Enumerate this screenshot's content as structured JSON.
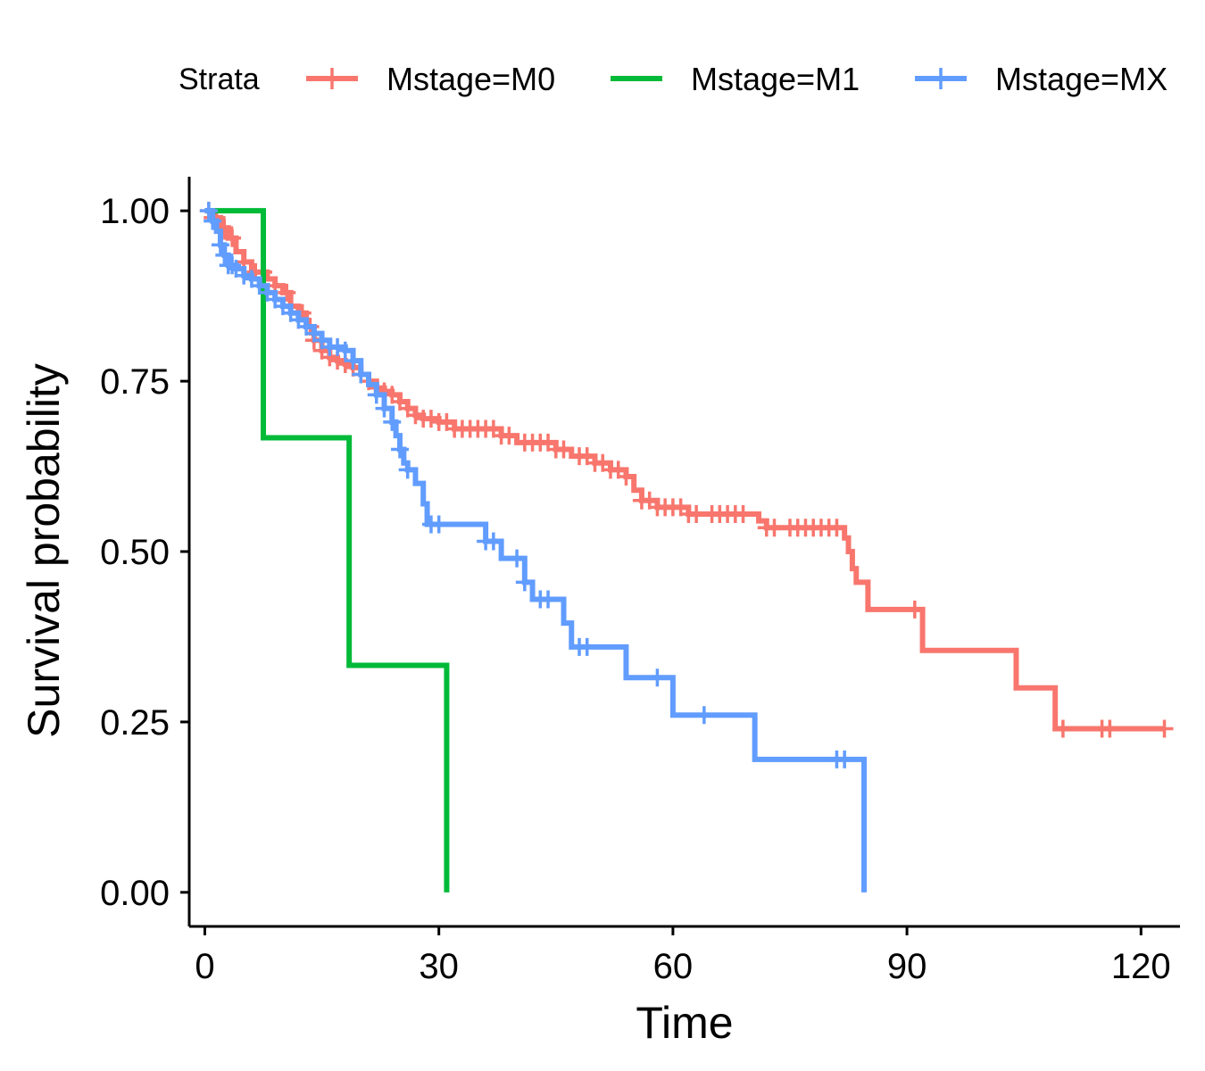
{
  "chart_data": {
    "type": "line",
    "step": true,
    "xlabel": "Time",
    "ylabel": "Survival probability",
    "xlim": [
      -2,
      125
    ],
    "ylim": [
      -0.05,
      1.05
    ],
    "x_ticks": [
      0,
      30,
      60,
      90,
      120
    ],
    "x_tick_labels": [
      "0",
      "30",
      "60",
      "90",
      "120"
    ],
    "y_ticks": [
      0,
      0.25,
      0.5,
      0.75,
      1.0
    ],
    "y_tick_labels": [
      "0.00",
      "0.25",
      "0.50",
      "0.75",
      "1.00"
    ],
    "grid": false,
    "legend": {
      "title": "Strata",
      "position": "top",
      "entries": [
        "Mstage=M0",
        "Mstage=M1",
        "Mstage=MX"
      ]
    },
    "series": [
      {
        "name": "Mstage=M0",
        "color": "#F8766D",
        "points": [
          [
            0,
            1.0
          ],
          [
            1,
            0.99
          ],
          [
            2,
            0.975
          ],
          [
            3,
            0.96
          ],
          [
            4,
            0.94
          ],
          [
            5,
            0.925
          ],
          [
            6,
            0.91
          ],
          [
            8,
            0.9
          ],
          [
            9,
            0.89
          ],
          [
            10,
            0.88
          ],
          [
            11,
            0.86
          ],
          [
            12,
            0.85
          ],
          [
            13,
            0.83
          ],
          [
            14,
            0.81
          ],
          [
            15,
            0.795
          ],
          [
            16,
            0.785
          ],
          [
            17,
            0.78
          ],
          [
            18,
            0.775
          ],
          [
            19,
            0.77
          ],
          [
            20,
            0.76
          ],
          [
            21,
            0.75
          ],
          [
            22,
            0.74
          ],
          [
            23,
            0.735
          ],
          [
            24,
            0.73
          ],
          [
            25,
            0.72
          ],
          [
            26,
            0.71
          ],
          [
            27,
            0.7
          ],
          [
            28,
            0.695
          ],
          [
            30,
            0.69
          ],
          [
            32,
            0.68
          ],
          [
            38,
            0.67
          ],
          [
            40,
            0.66
          ],
          [
            45,
            0.65
          ],
          [
            47,
            0.64
          ],
          [
            50,
            0.63
          ],
          [
            52,
            0.62
          ],
          [
            54,
            0.61
          ],
          [
            55,
            0.59
          ],
          [
            56,
            0.575
          ],
          [
            58,
            0.565
          ],
          [
            62,
            0.555
          ],
          [
            71,
            0.545
          ],
          [
            72,
            0.535
          ],
          [
            82,
            0.52
          ],
          [
            82.5,
            0.5
          ],
          [
            83,
            0.475
          ],
          [
            83.5,
            0.455
          ],
          [
            85,
            0.415
          ],
          [
            92,
            0.355
          ],
          [
            104,
            0.3
          ],
          [
            109,
            0.24
          ],
          [
            123,
            0.24
          ]
        ],
        "censor_x": [
          0.5,
          1,
          1.5,
          2.5,
          3.5,
          5,
          6.5,
          7.5,
          9,
          10.5,
          11,
          12.5,
          13.5,
          14,
          15,
          16,
          17,
          18,
          19,
          20,
          21,
          22,
          23,
          24,
          25,
          26,
          27,
          28,
          29,
          30,
          31,
          32,
          33,
          34,
          35,
          36,
          37,
          38,
          39,
          41,
          42,
          43,
          44,
          45,
          46,
          48,
          49,
          50,
          51,
          52,
          53,
          54,
          56,
          57,
          58,
          59,
          60,
          61,
          62,
          63,
          65,
          66,
          67,
          68,
          69,
          72,
          73,
          75,
          76,
          77,
          78,
          79,
          80,
          81,
          91,
          110,
          115,
          116,
          123
        ]
      },
      {
        "name": "Mstage=M1",
        "color": "#00BA38",
        "points": [
          [
            0,
            1.0
          ],
          [
            7.5,
            1.0
          ],
          [
            7.5,
            0.667
          ],
          [
            18.5,
            0.667
          ],
          [
            18.5,
            0.333
          ],
          [
            31,
            0.333
          ],
          [
            31,
            0.0
          ]
        ],
        "censor_x": []
      },
      {
        "name": "Mstage=MX",
        "color": "#619CFF",
        "points": [
          [
            0,
            1.0
          ],
          [
            1,
            0.985
          ],
          [
            1.5,
            0.97
          ],
          [
            2,
            0.95
          ],
          [
            2.5,
            0.935
          ],
          [
            3,
            0.92
          ],
          [
            4,
            0.915
          ],
          [
            5,
            0.905
          ],
          [
            6,
            0.9
          ],
          [
            7,
            0.89
          ],
          [
            8,
            0.88
          ],
          [
            9,
            0.87
          ],
          [
            10,
            0.86
          ],
          [
            11,
            0.85
          ],
          [
            12,
            0.84
          ],
          [
            13,
            0.83
          ],
          [
            14,
            0.82
          ],
          [
            15,
            0.81
          ],
          [
            16,
            0.8
          ],
          [
            18,
            0.795
          ],
          [
            19,
            0.78
          ],
          [
            20,
            0.76
          ],
          [
            21,
            0.745
          ],
          [
            22,
            0.73
          ],
          [
            23,
            0.71
          ],
          [
            24,
            0.69
          ],
          [
            24.5,
            0.67
          ],
          [
            25,
            0.65
          ],
          [
            25.5,
            0.63
          ],
          [
            26,
            0.62
          ],
          [
            27,
            0.6
          ],
          [
            28,
            0.57
          ],
          [
            28.5,
            0.54
          ],
          [
            36,
            0.515
          ],
          [
            38,
            0.49
          ],
          [
            41,
            0.455
          ],
          [
            42,
            0.43
          ],
          [
            46,
            0.395
          ],
          [
            47,
            0.36
          ],
          [
            54,
            0.315
          ],
          [
            60,
            0.26
          ],
          [
            70.5,
            0.195
          ],
          [
            84.5,
            0.195
          ],
          [
            84.5,
            0.0
          ]
        ],
        "censor_x": [
          0.5,
          1,
          2,
          2.5,
          3,
          3.5,
          4,
          5,
          6,
          7,
          8,
          9,
          10,
          11,
          12,
          13,
          14,
          15,
          16,
          17,
          18,
          19,
          20,
          22,
          23,
          24,
          25,
          26,
          29,
          30,
          36,
          37,
          40,
          41,
          43,
          44,
          48,
          49,
          58,
          64,
          81,
          82
        ]
      }
    ]
  }
}
